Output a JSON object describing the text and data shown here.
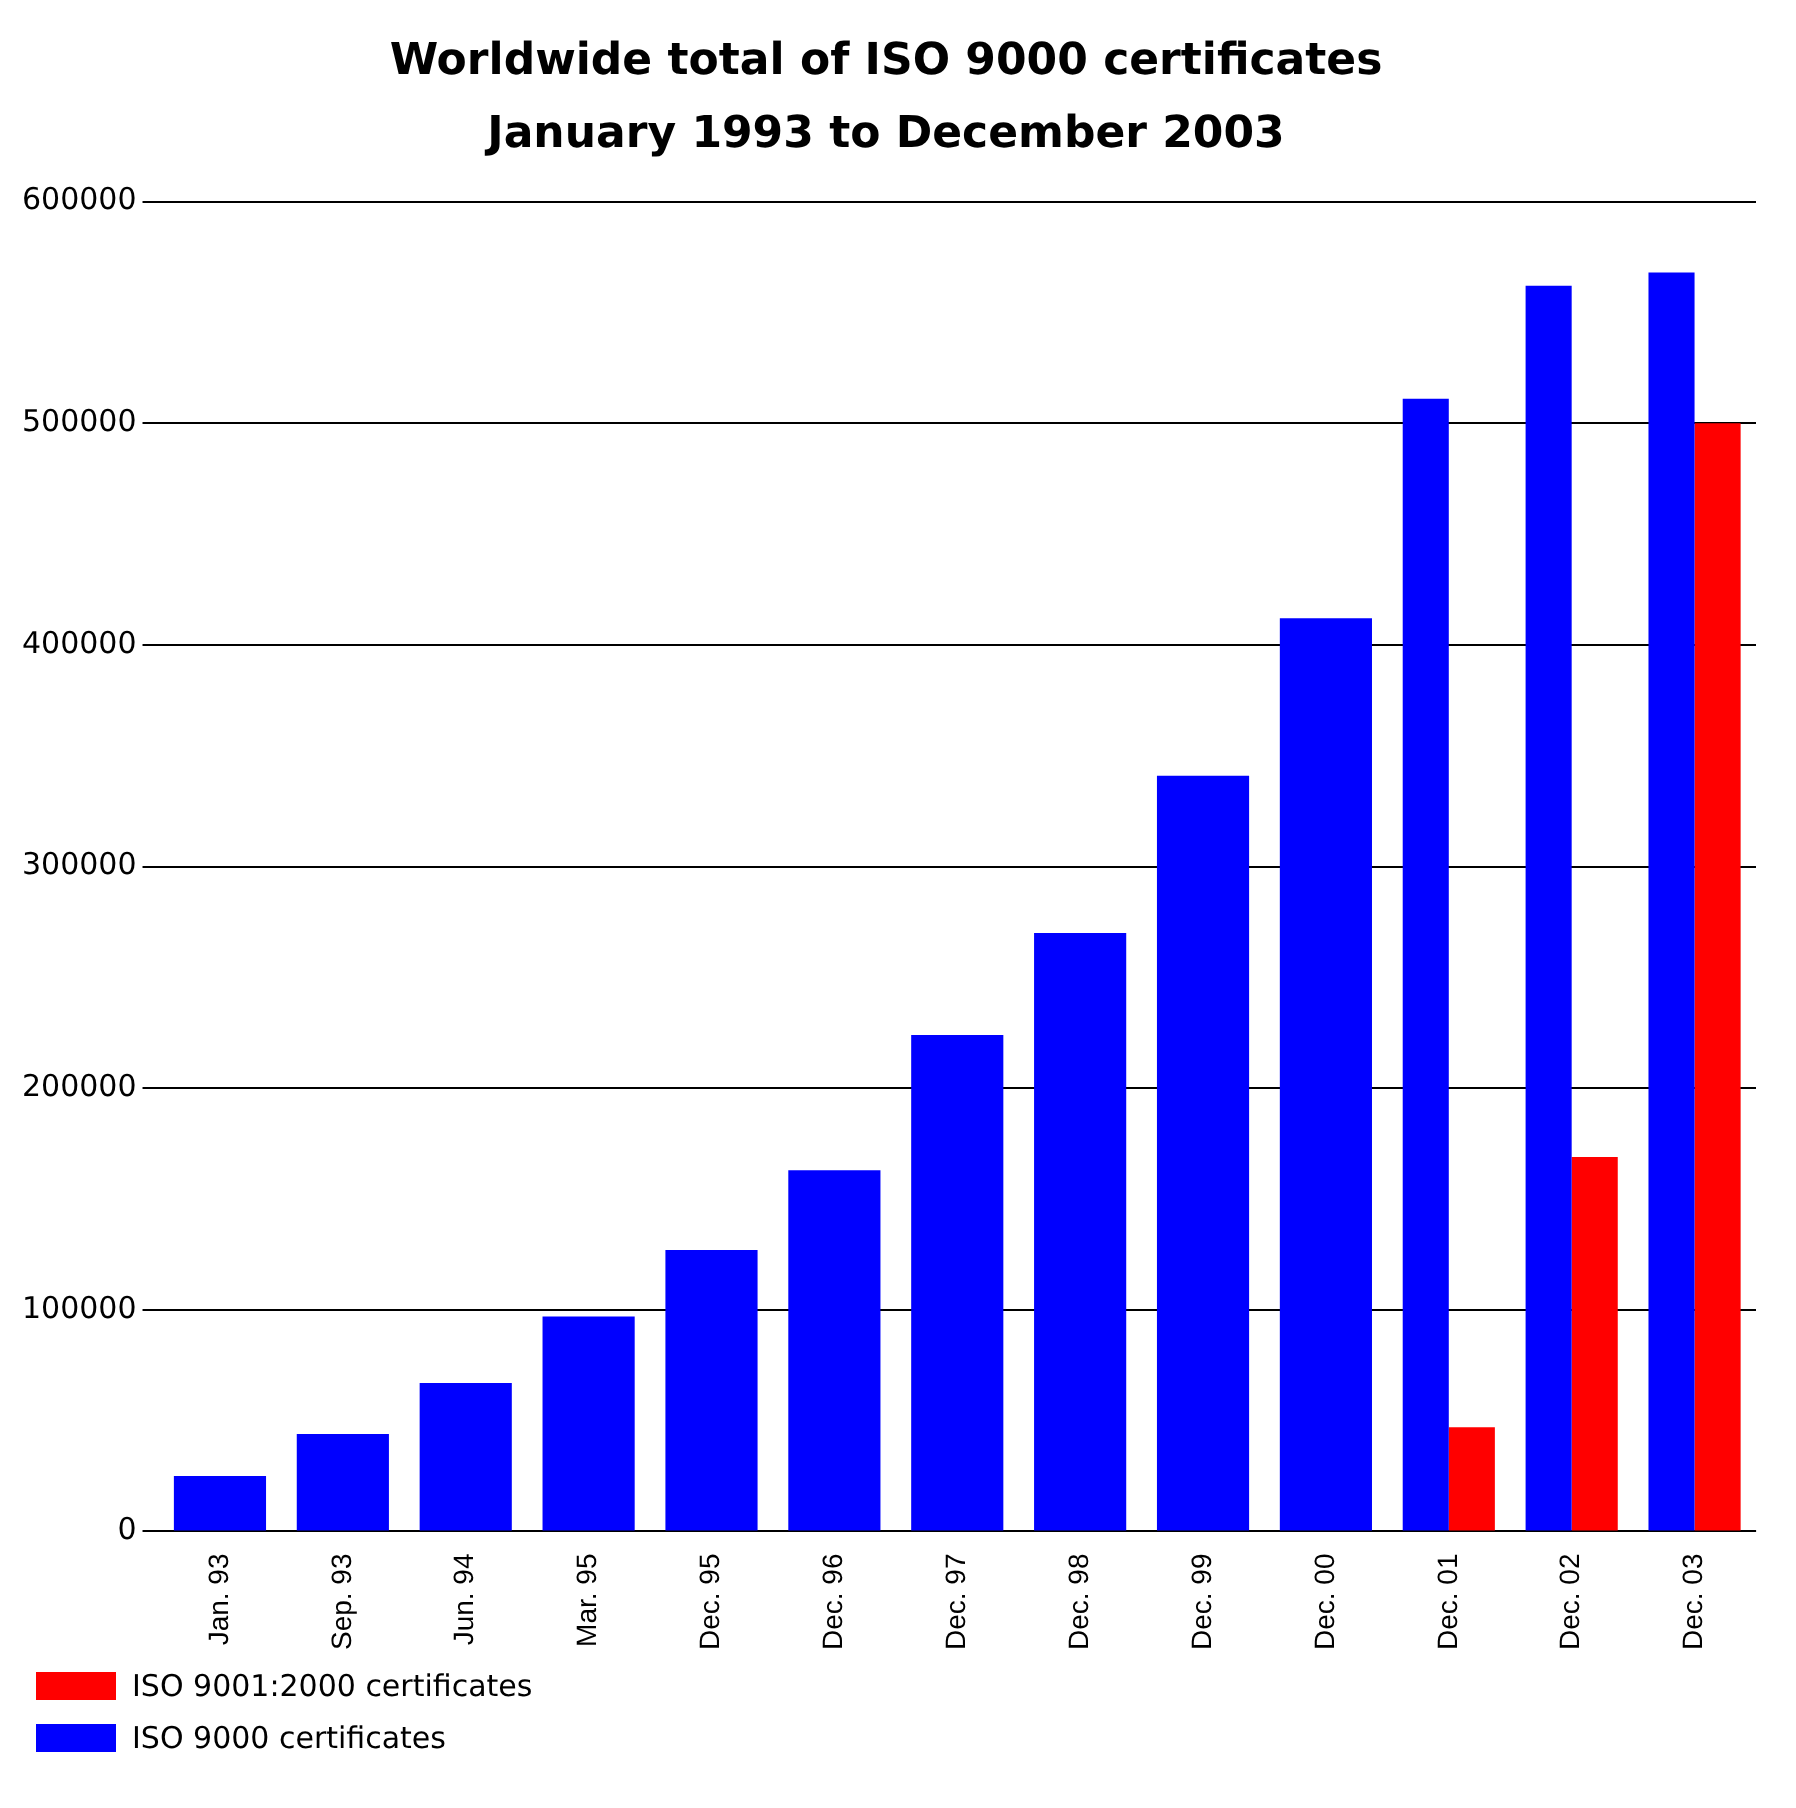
{
  "chart_data": {
    "type": "bar",
    "title": "Worldwide total of ISO 9000 certificates",
    "subtitle": "January 1993 to December 2003",
    "categories": [
      "Jan. 93",
      "Sep. 93",
      "Jun. 94",
      "Mar. 95",
      "Dec. 95",
      "Dec. 96",
      "Dec. 97",
      "Dec. 98",
      "Dec. 99",
      "Dec. 00",
      "Dec. 01",
      "Dec. 02",
      "Dec. 03"
    ],
    "series": [
      {
        "name": "ISO 9000 certificates",
        "color": "#0000ff",
        "values": [
          25000,
          44000,
          67000,
          97000,
          127000,
          163000,
          224000,
          270000,
          341000,
          412000,
          511000,
          562000,
          568000
        ]
      },
      {
        "name": "ISO 9001:2000 certificates",
        "color": "#ff0000",
        "values": [
          null,
          null,
          null,
          null,
          null,
          null,
          null,
          null,
          null,
          null,
          47000,
          169000,
          500000
        ]
      }
    ],
    "ylim": [
      0,
      600000
    ],
    "yticks": [
      0,
      100000,
      200000,
      300000,
      400000,
      500000,
      600000
    ],
    "grid": "y",
    "legend": "bottom"
  }
}
